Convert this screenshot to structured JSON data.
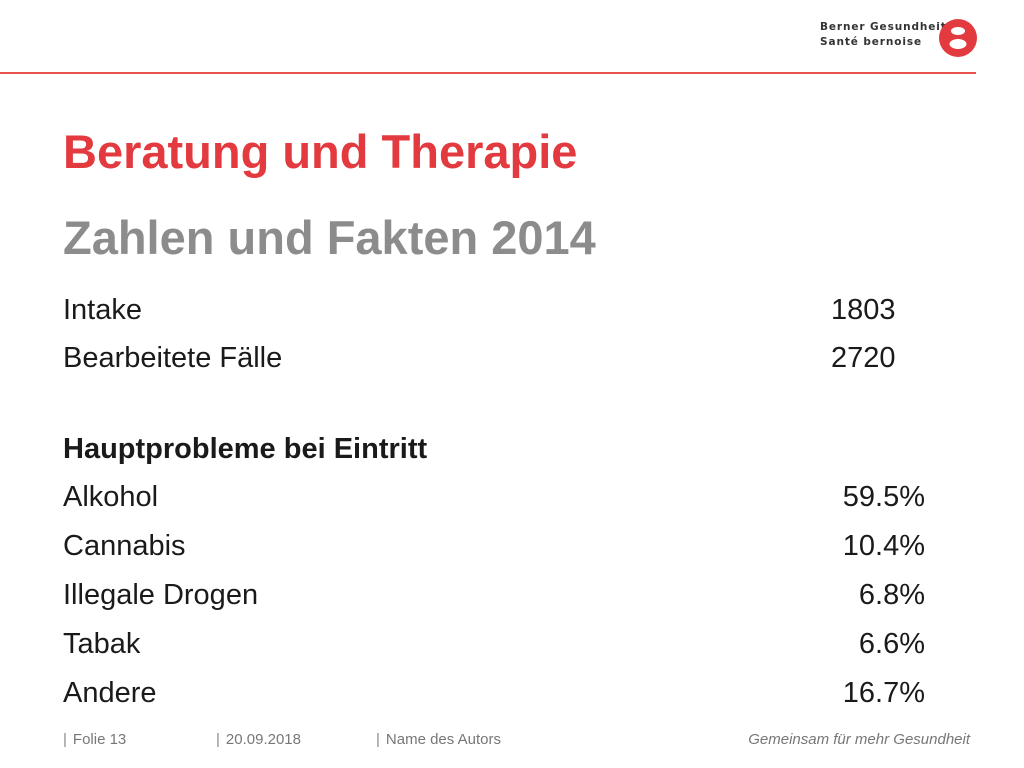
{
  "brand": {
    "line1": "Berner Gesundheit",
    "line2": "Santé bernoise",
    "accent_color": "#e23a3f",
    "logo_icon": "berner-gesundheit-logo"
  },
  "slide": {
    "title": "Beratung und Therapie",
    "subtitle": "Zahlen und Fakten 2014",
    "stats": [
      {
        "label": "Intake",
        "value": "1803"
      },
      {
        "label": "Bearbeitete Fälle",
        "value": "2720"
      }
    ],
    "section_heading": "Hauptprobleme bei Eintritt",
    "problems": [
      {
        "label": "Alkohol",
        "value": "59.5%"
      },
      {
        "label": "Cannabis",
        "value": "10.4%"
      },
      {
        "label": "Illegale Drogen",
        "value": "6.8%"
      },
      {
        "label": "Tabak",
        "value": "6.6%"
      },
      {
        "label": "Andere",
        "value": "16.7%"
      }
    ]
  },
  "footer": {
    "slide_number": "Folie 13",
    "date": "20.09.2018",
    "author": "Name des Autors",
    "tagline": "Gemeinsam für mehr Gesundheit"
  }
}
